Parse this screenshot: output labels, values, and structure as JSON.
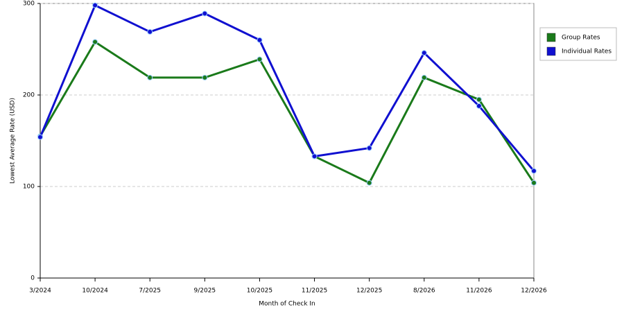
{
  "chart_data": {
    "type": "line",
    "x_label": "Month of Check In",
    "y_label": "Lowest Average Rate (USD)",
    "categories": [
      "3/2024",
      "10/2024",
      "7/2025",
      "9/2025",
      "10/2025",
      "11/2025",
      "12/2025",
      "8/2026",
      "11/2026",
      "12/2026"
    ],
    "series": [
      {
        "name": "Group Rates",
        "color": "#1a7a1a",
        "values": [
          155,
          258,
          219,
          219,
          239,
          133,
          104,
          219,
          195,
          104
        ]
      },
      {
        "name": "Individual Rates",
        "color": "#1010d0",
        "values": [
          154,
          298,
          269,
          289,
          260,
          133,
          142,
          246,
          188,
          117
        ]
      }
    ],
    "ylim": [
      0,
      300
    ],
    "yticks": [
      0,
      100,
      200,
      300
    ],
    "grid": true
  }
}
